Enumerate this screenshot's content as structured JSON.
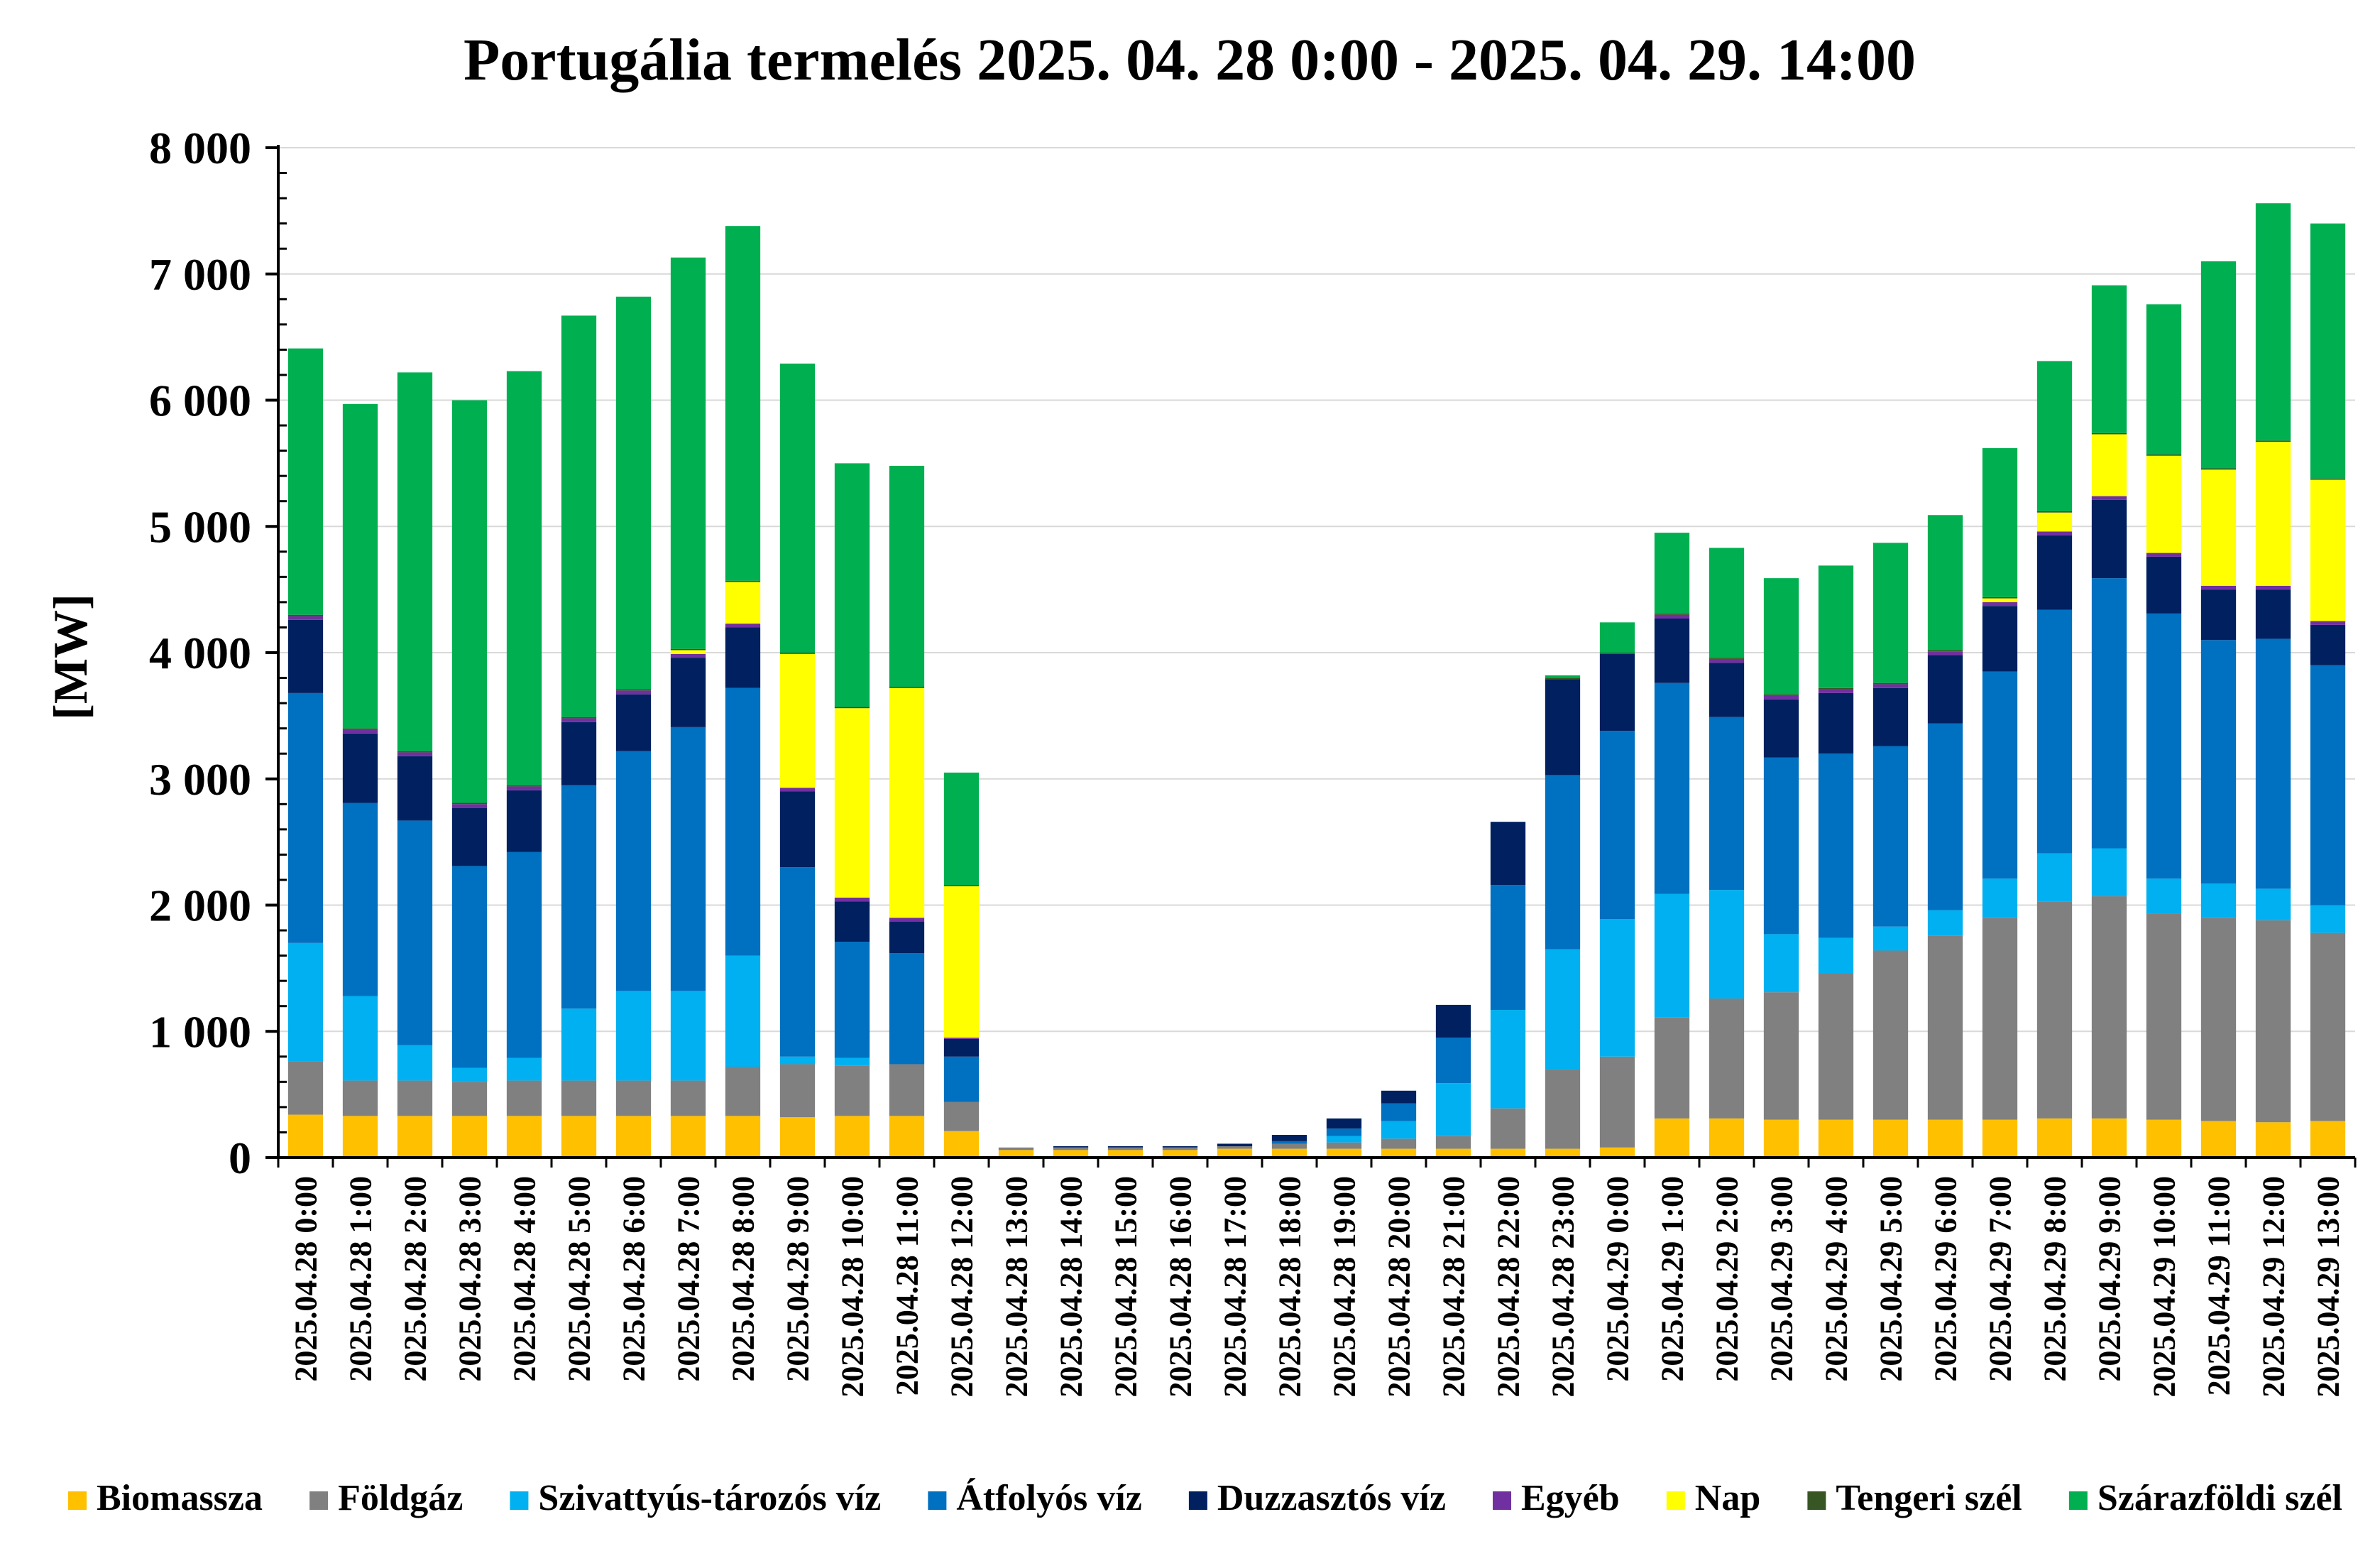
{
  "chart_data": {
    "type": "bar",
    "stacked": true,
    "title": "Portugália termelés 2025. 04. 28 0:00 - 2025. 04. 29. 14:00",
    "xlabel": "",
    "ylabel": "[MW]",
    "ylim": [
      0,
      8000
    ],
    "yticks": [
      0,
      1000,
      2000,
      3000,
      4000,
      5000,
      6000,
      7000,
      8000
    ],
    "ytick_labels": [
      "0",
      "1 000",
      "2 000",
      "3 000",
      "4 000",
      "5 000",
      "6 000",
      "7 000",
      "8 000"
    ],
    "grid": true,
    "legend_position": "bottom",
    "categories": [
      "2025.04.28 0:00",
      "2025.04.28 1:00",
      "2025.04.28 2:00",
      "2025.04.28 3:00",
      "2025.04.28 4:00",
      "2025.04.28 5:00",
      "2025.04.28 6:00",
      "2025.04.28 7:00",
      "2025.04.28 8:00",
      "2025.04.28 9:00",
      "2025.04.28 10:00",
      "2025.04.28 11:00",
      "2025.04.28 12:00",
      "2025.04.28 13:00",
      "2025.04.28 14:00",
      "2025.04.28 15:00",
      "2025.04.28 16:00",
      "2025.04.28 17:00",
      "2025.04.28 18:00",
      "2025.04.28 19:00",
      "2025.04.28 20:00",
      "2025.04.28 21:00",
      "2025.04.28 22:00",
      "2025.04.28 23:00",
      "2025.04.29 0:00",
      "2025.04.29 1:00",
      "2025.04.29 2:00",
      "2025.04.29 3:00",
      "2025.04.29 4:00",
      "2025.04.29 5:00",
      "2025.04.29 6:00",
      "2025.04.29 7:00",
      "2025.04.29 8:00",
      "2025.04.29 9:00",
      "2025.04.29 10:00",
      "2025.04.29 11:00",
      "2025.04.29 12:00",
      "2025.04.29 13:00"
    ],
    "series": [
      {
        "name": "Biomassza",
        "color": "#FFC000",
        "values": [
          340,
          330,
          330,
          330,
          330,
          330,
          330,
          330,
          330,
          320,
          330,
          330,
          210,
          60,
          60,
          60,
          60,
          70,
          70,
          70,
          70,
          70,
          70,
          70,
          80,
          310,
          310,
          300,
          300,
          300,
          300,
          300,
          310,
          310,
          300,
          290,
          280,
          290
        ]
      },
      {
        "name": "Földgáz",
        "color": "#808080",
        "values": [
          420,
          280,
          280,
          270,
          280,
          280,
          280,
          280,
          390,
          420,
          400,
          410,
          230,
          20,
          20,
          20,
          20,
          20,
          40,
          50,
          80,
          100,
          320,
          630,
          720,
          800,
          950,
          1010,
          1160,
          1340,
          1460,
          1600,
          1720,
          1760,
          1630,
          1610,
          1600,
          1490
        ]
      },
      {
        "name": "Szivattyús-tározós víz",
        "color": "#00B0F0",
        "values": [
          940,
          670,
          280,
          110,
          180,
          570,
          710,
          710,
          880,
          60,
          60,
          0,
          0,
          0,
          0,
          0,
          0,
          0,
          0,
          50,
          140,
          420,
          780,
          950,
          1090,
          980,
          860,
          460,
          280,
          190,
          200,
          310,
          380,
          380,
          280,
          270,
          250,
          220
        ]
      },
      {
        "name": "Átfolyós víz",
        "color": "#0070C0",
        "values": [
          1980,
          1530,
          1780,
          1600,
          1630,
          1770,
          1900,
          2090,
          2120,
          1500,
          920,
          880,
          360,
          0,
          0,
          0,
          0,
          0,
          20,
          60,
          140,
          360,
          990,
          1380,
          1490,
          1670,
          1370,
          1400,
          1460,
          1430,
          1480,
          1640,
          1930,
          2140,
          2100,
          1930,
          1980,
          1900
        ]
      },
      {
        "name": "Duzzasztós víz",
        "color": "#002060",
        "values": [
          580,
          550,
          510,
          460,
          490,
          500,
          450,
          550,
          480,
          600,
          320,
          250,
          140,
          0,
          10,
          10,
          10,
          20,
          50,
          80,
          100,
          260,
          500,
          760,
          610,
          510,
          430,
          460,
          480,
          460,
          540,
          520,
          590,
          620,
          450,
          400,
          390,
          320
        ]
      },
      {
        "name": "Egyéb",
        "color": "#7030A0",
        "values": [
          30,
          30,
          30,
          30,
          30,
          30,
          30,
          30,
          30,
          30,
          30,
          30,
          10,
          0,
          0,
          0,
          0,
          0,
          0,
          0,
          0,
          0,
          0,
          0,
          0,
          30,
          30,
          30,
          30,
          30,
          30,
          30,
          30,
          30,
          30,
          30,
          30,
          30
        ]
      },
      {
        "name": "Nap",
        "color": "#FFFF00",
        "values": [
          0,
          0,
          0,
          0,
          0,
          0,
          0,
          30,
          330,
          1060,
          1500,
          1820,
          1200,
          0,
          0,
          0,
          0,
          0,
          0,
          0,
          0,
          0,
          0,
          0,
          0,
          0,
          0,
          0,
          0,
          0,
          0,
          30,
          150,
          490,
          770,
          920,
          1140,
          1120
        ]
      },
      {
        "name": "Tengeri szél",
        "color": "#375623",
        "values": [
          10,
          10,
          10,
          10,
          10,
          10,
          10,
          10,
          10,
          10,
          10,
          10,
          10,
          0,
          0,
          0,
          0,
          0,
          0,
          0,
          0,
          0,
          0,
          10,
          10,
          10,
          10,
          10,
          10,
          10,
          10,
          10,
          10,
          10,
          10,
          10,
          10,
          10
        ]
      },
      {
        "name": "Szárazföldi szél",
        "color": "#00B050",
        "values": [
          2110,
          2570,
          3000,
          3190,
          3280,
          3180,
          3110,
          3100,
          2810,
          2290,
          1930,
          1750,
          890,
          0,
          0,
          0,
          0,
          0,
          0,
          0,
          0,
          0,
          0,
          20,
          240,
          640,
          870,
          920,
          970,
          1110,
          1070,
          1180,
          1190,
          1170,
          1190,
          1640,
          1880,
          2020
        ]
      }
    ]
  }
}
